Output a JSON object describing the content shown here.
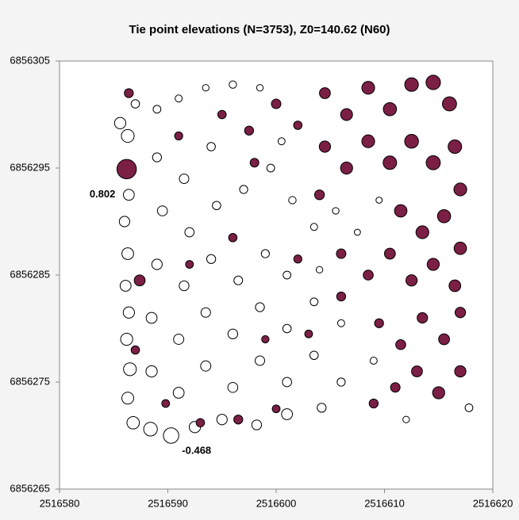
{
  "chart_data": {
    "type": "bubble",
    "title": "Tie point elevations (N=3753), Z0=140.62 (N60)",
    "xlim": [
      2516580,
      2516620
    ],
    "ylim": [
      6856265,
      6856305
    ],
    "xticks": [
      2516580,
      2516590,
      2516600,
      2516610,
      2516620
    ],
    "yticks": [
      6856265,
      6856275,
      6856285,
      6856295,
      6856305
    ],
    "grid": false,
    "series": [
      {
        "color": "#ffffff",
        "x": [
          2516590.3,
          2516588.4,
          2516586.8,
          2516592.5,
          2516595.0,
          2516598.2,
          2516601.0,
          2516604.2,
          2516586.3,
          2516586.5,
          2516586.2,
          2516586.4,
          2516586.1,
          2516586.3,
          2516586.0,
          2516586.4,
          2516585.6,
          2516586.3,
          2516587.0,
          2516589.0,
          2516591.0,
          2516593.5,
          2516596.0,
          2516598.5,
          2516589.0,
          2516591.5,
          2516589.5,
          2516592.0,
          2516594.5,
          2516597.0,
          2516599.5,
          2516601.5,
          2516603.5,
          2516605.5,
          2516607.5,
          2516589.0,
          2516591.5,
          2516594.0,
          2516596.5,
          2516599.0,
          2516601.0,
          2516588.5,
          2516591.0,
          2516593.5,
          2516596.0,
          2516598.5,
          2516601.0,
          2516603.5,
          2516606.0,
          2516588.5,
          2516591.0,
          2516593.5,
          2516596.0,
          2516598.5,
          2516601.0,
          2516603.5,
          2516606.0,
          2516609.0,
          2516604.0,
          2516609.5,
          2516600.5,
          2516594.0,
          2516617.8,
          2516612.0
        ],
        "y": [
          6856270.0,
          6856270.6,
          6856271.2,
          6856270.8,
          6856271.5,
          6856271.0,
          6856272.0,
          6856272.6,
          6856273.5,
          6856276.2,
          6856279.0,
          6856281.5,
          6856284.0,
          6856287.0,
          6856290.0,
          6856292.5,
          6856299.2,
          6856298.0,
          6856301.0,
          6856300.5,
          6856301.5,
          6856302.5,
          6856302.8,
          6856302.5,
          6856296.0,
          6856294.0,
          6856291.0,
          6856289.0,
          6856291.5,
          6856293.0,
          6856295.0,
          6856292.0,
          6856289.5,
          6856291.0,
          6856289.0,
          6856286.0,
          6856284.0,
          6856286.5,
          6856284.5,
          6856287.0,
          6856285.0,
          6856281.0,
          6856279.0,
          6856281.5,
          6856279.5,
          6856282.0,
          6856280.0,
          6856282.5,
          6856280.5,
          6856276.0,
          6856274.0,
          6856276.5,
          6856274.5,
          6856277.0,
          6856275.0,
          6856277.5,
          6856275.0,
          6856277.0,
          6856285.5,
          6856292.0,
          6856297.5,
          6856297.0,
          6856272.6,
          6856271.5
        ],
        "values": [
          -0.468,
          -0.35,
          -0.28,
          -0.22,
          -0.18,
          -0.15,
          -0.2,
          -0.12,
          -0.25,
          -0.3,
          -0.26,
          -0.22,
          -0.2,
          -0.24,
          -0.18,
          -0.2,
          -0.22,
          -0.3,
          -0.1,
          -0.08,
          -0.06,
          -0.05,
          -0.07,
          -0.05,
          -0.12,
          -0.14,
          -0.16,
          -0.13,
          -0.1,
          -0.09,
          -0.08,
          -0.07,
          -0.06,
          -0.05,
          -0.04,
          -0.18,
          -0.15,
          -0.12,
          -0.11,
          -0.09,
          -0.08,
          -0.2,
          -0.17,
          -0.14,
          -0.15,
          -0.12,
          -0.1,
          -0.08,
          -0.06,
          -0.22,
          -0.2,
          -0.17,
          -0.16,
          -0.14,
          -0.13,
          -0.1,
          -0.09,
          -0.06,
          -0.05,
          -0.04,
          -0.06,
          -0.1,
          -0.08,
          -0.05
        ]
      },
      {
        "color": "#7b1f45",
        "x": [
          2516586.2,
          2516586.4,
          2516587.4,
          2516587.0,
          2516589.8,
          2516593.0,
          2516596.5,
          2516600.0,
          2516595.0,
          2516597.5,
          2516600.0,
          2516602.0,
          2516604.5,
          2516606.5,
          2516608.5,
          2516610.5,
          2516612.5,
          2516614.5,
          2516616.0,
          2516604.5,
          2516606.5,
          2516608.5,
          2516610.5,
          2516612.5,
          2516614.5,
          2516616.5,
          2516617.0,
          2516604.0,
          2516611.5,
          2516613.5,
          2516615.5,
          2516617.0,
          2516606.0,
          2516608.5,
          2516610.5,
          2516612.5,
          2516614.5,
          2516616.5,
          2516609.5,
          2516611.5,
          2516613.5,
          2516615.5,
          2516617.0,
          2516611.0,
          2516613.0,
          2516615.0,
          2516617.0,
          2516609.0,
          2516596.0,
          2516592.0,
          2516599.0,
          2516602.0,
          2516603.0,
          2516606.0,
          2516591.0,
          2516598.0
        ],
        "y": [
          6856294.9,
          6856302.0,
          6856284.5,
          6856278.0,
          6856273.0,
          6856271.2,
          6856271.5,
          6856272.5,
          6856300.0,
          6856298.5,
          6856301.0,
          6856299.0,
          6856302.0,
          6856300.0,
          6856302.5,
          6856300.5,
          6856302.8,
          6856303.0,
          6856301.0,
          6856297.0,
          6856295.0,
          6856297.5,
          6856295.5,
          6856297.5,
          6856295.5,
          6856297.0,
          6856293.0,
          6856292.5,
          6856291.0,
          6856289.0,
          6856290.5,
          6856287.5,
          6856287.0,
          6856285.0,
          6856287.0,
          6856284.5,
          6856286.0,
          6856284.0,
          6856280.5,
          6856278.5,
          6856281.0,
          6856279.0,
          6856281.5,
          6856274.5,
          6856276.0,
          6856274.0,
          6856276.0,
          6856273.0,
          6856288.5,
          6856286.0,
          6856279.0,
          6856286.5,
          6856279.5,
          6856283.0,
          6856298.0,
          6856295.5
        ],
        "values": [
          0.802,
          0.12,
          0.2,
          0.1,
          0.08,
          0.1,
          0.12,
          0.08,
          0.1,
          0.12,
          0.14,
          0.1,
          0.2,
          0.25,
          0.3,
          0.32,
          0.35,
          0.4,
          0.38,
          0.22,
          0.26,
          0.3,
          0.34,
          0.36,
          0.38,
          0.34,
          0.3,
          0.15,
          0.28,
          0.3,
          0.32,
          0.28,
          0.14,
          0.16,
          0.2,
          0.22,
          0.26,
          0.24,
          0.12,
          0.16,
          0.18,
          0.2,
          0.18,
          0.14,
          0.2,
          0.26,
          0.22,
          0.12,
          0.1,
          0.08,
          0.07,
          0.09,
          0.08,
          0.12,
          0.09,
          0.11
        ]
      }
    ],
    "annotations": [
      "0.802",
      "-0.468"
    ]
  }
}
